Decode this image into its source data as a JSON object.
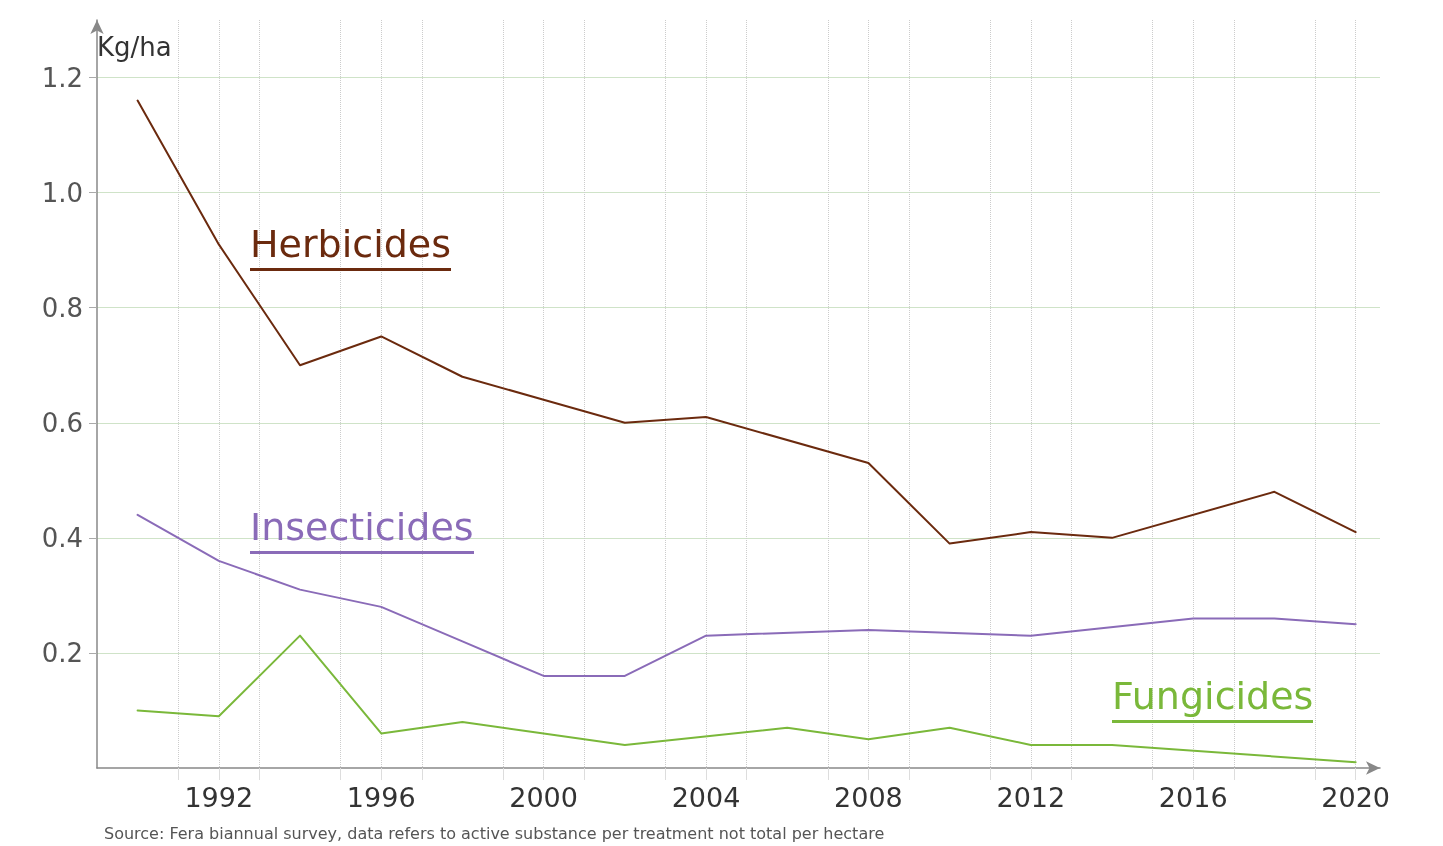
{
  "chart_data": {
    "type": "line",
    "ylabel": "Kg/ha",
    "annotations": [
      "Source: Fera biannual survey, data refers to active substance per treatment not total per hectare"
    ],
    "xlim": [
      1989,
      2020.6
    ],
    "ylim": [
      0,
      1.3
    ],
    "xticks": [
      {
        "value": 1991,
        "label": null
      },
      {
        "value": 1992,
        "label": "1992"
      },
      {
        "value": 1993,
        "label": null
      },
      {
        "value": 1995,
        "label": null
      },
      {
        "value": 1996,
        "label": "1996"
      },
      {
        "value": 1997,
        "label": null
      },
      {
        "value": 1999,
        "label": null
      },
      {
        "value": 2000,
        "label": "2000"
      },
      {
        "value": 2001,
        "label": null
      },
      {
        "value": 2003,
        "label": null
      },
      {
        "value": 2004,
        "label": "2004"
      },
      {
        "value": 2005,
        "label": null
      },
      {
        "value": 2007,
        "label": null
      },
      {
        "value": 2008,
        "label": "2008"
      },
      {
        "value": 2009,
        "label": null
      },
      {
        "value": 2011,
        "label": null
      },
      {
        "value": 2012,
        "label": "2012"
      },
      {
        "value": 2013,
        "label": null
      },
      {
        "value": 2015,
        "label": null
      },
      {
        "value": 2016,
        "label": "2016"
      },
      {
        "value": 2017,
        "label": null
      },
      {
        "value": 2019,
        "label": null
      },
      {
        "value": 2020,
        "label": "2020"
      }
    ],
    "yticks": [
      0.2,
      0.4,
      0.6,
      0.8,
      {
        "value": 1,
        "label": "1.0"
      },
      1.2
    ],
    "grid": true,
    "legend": false,
    "marker": "none",
    "line_style": "solid",
    "series": [
      {
        "name": "Herbicides",
        "color": "#6b2a0e",
        "x": [
          1990,
          1992,
          1994,
          1996,
          1998,
          2000,
          2002,
          2004,
          2008,
          2010,
          2012,
          2014,
          2018,
          2020
        ],
        "values": [
          1.16,
          0.91,
          0.7,
          0.75,
          0.68,
          0.64,
          0.6,
          0.61,
          0.53,
          0.39,
          0.41,
          0.4,
          0.48,
          0.41
        ]
      },
      {
        "name": "Insecticides",
        "color": "#8a6bb8",
        "x": [
          1990,
          1992,
          1994,
          1996,
          1998,
          2000,
          2002,
          2004,
          2008,
          2012,
          2016,
          2018,
          2020
        ],
        "values": [
          0.44,
          0.36,
          0.31,
          0.28,
          0.22,
          0.16,
          0.16,
          0.23,
          0.24,
          0.23,
          0.26,
          0.26,
          0.25
        ]
      },
      {
        "name": "Fungicides",
        "color": "#7ab83a",
        "x": [
          1990,
          1992,
          1994,
          1996,
          1998,
          2000,
          2002,
          2006,
          2008,
          2010,
          2012,
          2014,
          2020
        ],
        "values": [
          0.1,
          0.09,
          0.23,
          0.06,
          0.08,
          0.06,
          0.04,
          0.07,
          0.05,
          0.07,
          0.04,
          0.04,
          0.01
        ]
      }
    ]
  }
}
